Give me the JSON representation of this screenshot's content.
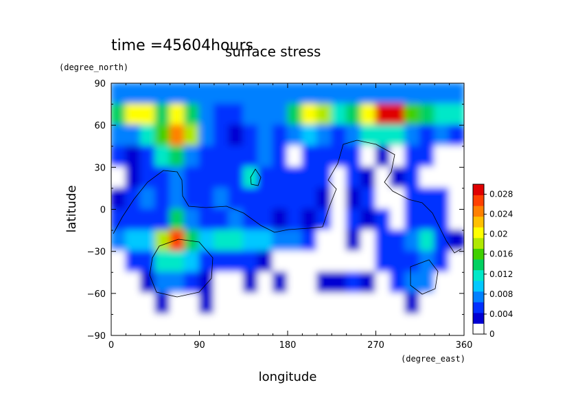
{
  "chart_data": {
    "type": "heatmap",
    "title": "surface stress",
    "subtitle": "time =45604hours",
    "xlabel": "longitude",
    "ylabel": "latitude",
    "xunits": "(degree_east)",
    "yunits": "(degree_north)",
    "xlim": [
      0,
      360
    ],
    "ylim": [
      -90,
      90
    ],
    "xticks": [
      "0",
      "90",
      "180",
      "270",
      "360"
    ],
    "yticks": [
      "90",
      "60",
      "30",
      "0",
      "−30",
      "−60",
      "−90"
    ],
    "colorbar": {
      "range": [
        0,
        0.03
      ],
      "labels": [
        "0",
        "0.004",
        "0.008",
        "0.012",
        "0.016",
        "0.02",
        "0.024",
        "0.028"
      ],
      "colors": [
        "#ffffff",
        "#0000d2",
        "#0030ff",
        "#0080ff",
        "#00c8ff",
        "#00e8c8",
        "#00d060",
        "#40d000",
        "#b0e800",
        "#ffff00",
        "#ffc000",
        "#ff8000",
        "#ff4000",
        "#e00000"
      ]
    },
    "grid_step_deg": 15,
    "lon_centers": [
      7.5,
      22.5,
      37.5,
      52.5,
      67.5,
      82.5,
      97.5,
      112.5,
      127.5,
      142.5,
      157.5,
      172.5,
      187.5,
      202.5,
      217.5,
      232.5,
      247.5,
      262.5,
      277.5,
      292.5,
      307.5,
      322.5,
      337.5,
      352.5
    ],
    "lat_centers": [
      82.5,
      67.5,
      52.5,
      37.5,
      22.5,
      7.5,
      -7.5,
      -22.5,
      -37.5,
      -52.5,
      -67.5,
      -82.5
    ],
    "values": [
      [
        0.006,
        0.007,
        0.007,
        0.007,
        0.007,
        0.007,
        0.006,
        0.006,
        0.006,
        0.006,
        0.006,
        0.006,
        0.006,
        0.006,
        0.006,
        0.006,
        0.006,
        0.006,
        0.006,
        0.006,
        0.006,
        0.006,
        0.006,
        0.006
      ],
      [
        0.014,
        0.022,
        0.02,
        0.014,
        0.022,
        0.014,
        0.005,
        0.004,
        0.004,
        0.005,
        0.006,
        0.006,
        0.014,
        0.022,
        0.018,
        0.012,
        0.014,
        0.02,
        0.03,
        0.03,
        0.016,
        0.014,
        0.01,
        0.01
      ],
      [
        0.006,
        0.006,
        0.012,
        0.016,
        0.026,
        0.018,
        0.006,
        0.003,
        0.002,
        0.004,
        0.007,
        0.004,
        0.006,
        0.008,
        0.006,
        0.004,
        0.005,
        0.012,
        0.012,
        0.012,
        0.006,
        0.004,
        0.005,
        0.003
      ],
      [
        0.003,
        0.002,
        0.004,
        0.01,
        0.014,
        0.007,
        0.004,
        0.003,
        0.004,
        0.004,
        0.005,
        0.003,
        0.0,
        0.003,
        0.004,
        0.004,
        0.003,
        0.0,
        0.002,
        0.0,
        0.003,
        0.004,
        0.0,
        0.0
      ],
      [
        0.0,
        0.002,
        0.004,
        0.004,
        0.006,
        0.004,
        0.003,
        0.004,
        0.003,
        0.012,
        0.004,
        0.004,
        0.003,
        0.004,
        0.004,
        0.0,
        0.003,
        0.002,
        0.0,
        0.002,
        0.003,
        0.0,
        0.0,
        0.0
      ],
      [
        0.002,
        0.003,
        0.005,
        0.004,
        0.006,
        0.004,
        0.004,
        0.005,
        0.004,
        0.004,
        0.004,
        0.004,
        0.003,
        0.003,
        0.002,
        0.0,
        0.002,
        0.003,
        0.0,
        0.0,
        0.003,
        0.003,
        0.004,
        0.0
      ],
      [
        0.003,
        0.004,
        0.004,
        0.004,
        0.014,
        0.006,
        0.004,
        0.004,
        0.005,
        0.003,
        0.003,
        0.002,
        0.003,
        0.002,
        0.003,
        0.0,
        0.003,
        0.002,
        0.003,
        0.0,
        0.003,
        0.004,
        0.003,
        0.0
      ],
      [
        0.006,
        0.008,
        0.008,
        0.018,
        0.028,
        0.014,
        0.008,
        0.01,
        0.012,
        0.008,
        0.008,
        0.006,
        0.006,
        0.003,
        0.0,
        0.0,
        0.002,
        0.0,
        0.003,
        0.004,
        0.006,
        0.01,
        0.004,
        0.002
      ],
      [
        0.0,
        0.003,
        0.004,
        0.01,
        0.012,
        0.008,
        0.004,
        0.003,
        0.004,
        0.003,
        0.002,
        0.0,
        0.0,
        0.0,
        0.0,
        0.0,
        0.0,
        0.0,
        0.003,
        0.003,
        0.004,
        0.006,
        0.003,
        0.0
      ],
      [
        0.0,
        0.0,
        0.002,
        0.006,
        0.006,
        0.004,
        0.002,
        0.0,
        0.0,
        0.002,
        0.0,
        0.002,
        0.0,
        0.0,
        0.002,
        0.002,
        0.003,
        0.002,
        0.0,
        0.003,
        0.005,
        0.006,
        0.0,
        0.0
      ],
      [
        0.0,
        0.0,
        0.0,
        0.002,
        0.0,
        0.0,
        0.002,
        0.0,
        0.0,
        0.0,
        0.0,
        0.0,
        0.0,
        0.0,
        0.0,
        0.0,
        0.0,
        0.0,
        0.0,
        0.0,
        0.002,
        0.0,
        0.0,
        0.0
      ],
      [
        0.0,
        0.0,
        0.0,
        0.0,
        0.0,
        0.0,
        0.0,
        0.0,
        0.0,
        0.0,
        0.0,
        0.0,
        0.0,
        0.0,
        0.0,
        0.0,
        0.0,
        0.0,
        0.0,
        0.0,
        0.0,
        0.0,
        0.0,
        0.0
      ]
    ],
    "grid": false,
    "legend": "right colorbar"
  }
}
